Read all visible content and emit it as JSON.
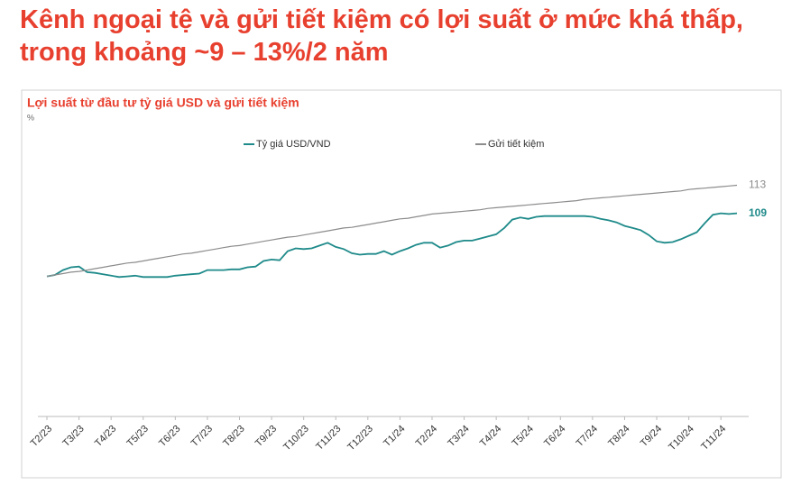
{
  "header": {
    "title": "Kênh ngoại tệ và gửi tiết kiệm có lợi suất ở mức khá thấp, trong khoảng ~9 – 13%/2 năm"
  },
  "chart_data": {
    "type": "line",
    "title": "Lợi suất từ đầu tư tỷ giá USD và gửi tiết kiệm",
    "ylabel": "%",
    "ylim": [
      80,
      115
    ],
    "categories": [
      "T2/23",
      null,
      null,
      null,
      "T3/23",
      null,
      null,
      null,
      "T4/23",
      null,
      null,
      null,
      "T5/23",
      null,
      null,
      null,
      "T6/23",
      null,
      null,
      null,
      "T7/23",
      null,
      null,
      null,
      "T8/23",
      null,
      null,
      null,
      "T9/23",
      null,
      null,
      null,
      "T10/23",
      null,
      null,
      null,
      "T11/23",
      null,
      null,
      null,
      "T12/23",
      null,
      null,
      null,
      "T1/24",
      null,
      null,
      null,
      "T2/24",
      null,
      null,
      null,
      "T3/24",
      null,
      null,
      null,
      "T4/24",
      null,
      null,
      null,
      "T5/24",
      null,
      null,
      null,
      "T6/24",
      null,
      null,
      null,
      "T7/24",
      null,
      null,
      null,
      "T8/24",
      null,
      null,
      null,
      "T9/24",
      null,
      null,
      null,
      "T10/24",
      null,
      null,
      null,
      "T11/24",
      null,
      null
    ],
    "series": [
      {
        "name": "Tỷ giá USD/VND",
        "color": "#1f8a8a",
        "values": [
          100.0,
          100.2,
          100.9,
          101.3,
          101.4,
          100.6,
          100.5,
          100.3,
          100.1,
          99.9,
          100.0,
          100.1,
          99.9,
          99.9,
          99.9,
          99.9,
          100.1,
          100.2,
          100.3,
          100.4,
          100.9,
          100.9,
          100.9,
          101.0,
          101.0,
          101.3,
          101.4,
          102.2,
          102.4,
          102.3,
          103.6,
          104.0,
          103.9,
          104.0,
          104.4,
          104.8,
          104.2,
          103.9,
          103.3,
          103.1,
          103.2,
          103.2,
          103.6,
          103.1,
          103.6,
          104.0,
          104.5,
          104.8,
          104.8,
          104.1,
          104.4,
          104.9,
          105.1,
          105.1,
          105.4,
          105.7,
          106.0,
          106.9,
          108.1,
          108.4,
          108.2,
          108.5,
          108.6,
          108.6,
          108.6,
          108.6,
          108.6,
          108.6,
          108.5,
          108.2,
          108.0,
          107.7,
          107.2,
          106.9,
          106.6,
          105.9,
          105.0,
          104.8,
          104.9,
          105.3,
          105.8,
          106.3,
          107.6,
          108.8,
          109.0,
          108.9,
          109
        ]
      },
      {
        "name": "Gửi tiết kiệm",
        "color": "#8c8c8c",
        "values": [
          100.0,
          100.2,
          100.4,
          100.6,
          100.7,
          100.9,
          101.1,
          101.3,
          101.5,
          101.7,
          101.9,
          102.0,
          102.2,
          102.4,
          102.6,
          102.8,
          103.0,
          103.2,
          103.3,
          103.5,
          103.7,
          103.9,
          104.1,
          104.3,
          104.4,
          104.6,
          104.8,
          105.0,
          105.2,
          105.4,
          105.6,
          105.7,
          105.9,
          106.1,
          106.3,
          106.5,
          106.7,
          106.9,
          107.0,
          107.2,
          107.4,
          107.6,
          107.8,
          108.0,
          108.2,
          108.3,
          108.5,
          108.7,
          108.9,
          109.0,
          109.1,
          109.2,
          109.3,
          109.4,
          109.5,
          109.7,
          109.8,
          109.9,
          110.0,
          110.1,
          110.2,
          110.3,
          110.4,
          110.5,
          110.6,
          110.7,
          110.8,
          111.0,
          111.1,
          111.2,
          111.3,
          111.4,
          111.5,
          111.6,
          111.7,
          111.8,
          111.9,
          112.0,
          112.1,
          112.2,
          112.4,
          112.5,
          112.6,
          112.7,
          112.8,
          112.9,
          113
        ]
      }
    ],
    "legend": "top"
  }
}
